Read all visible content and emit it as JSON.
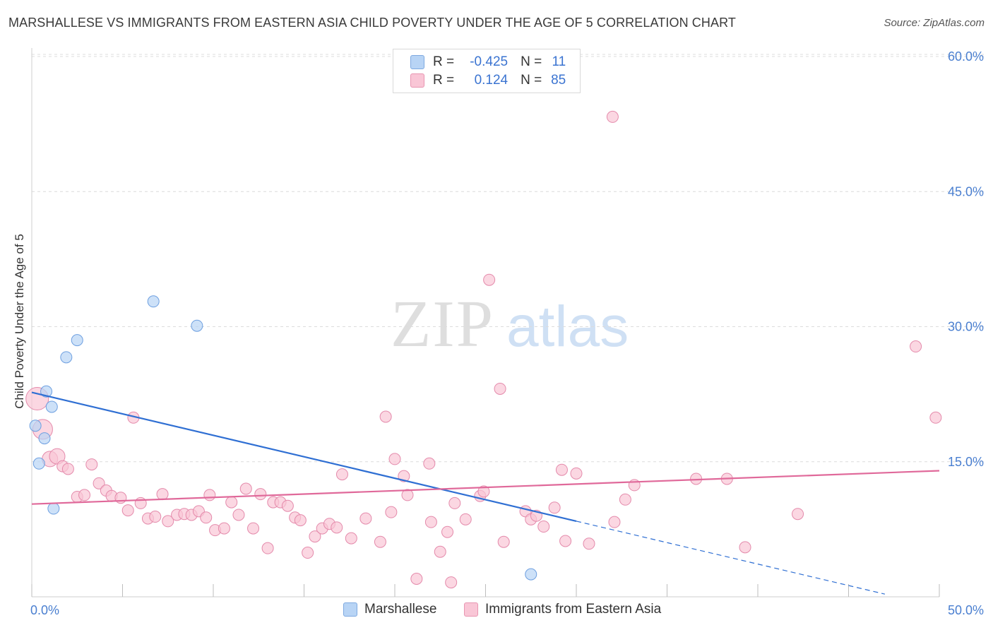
{
  "title": "MARSHALLESE VS IMMIGRANTS FROM EASTERN ASIA CHILD POVERTY UNDER THE AGE OF 5 CORRELATION CHART",
  "source": "Source: ZipAtlas.com",
  "watermark": {
    "zip": "ZIP",
    "atlas": "atlas"
  },
  "legend": {
    "rows": [
      {
        "r_label": "R =",
        "r_value": "-0.425",
        "n_label": "N =",
        "n_value": "11",
        "color": "#b8d4f5",
        "border": "#7ea9e0"
      },
      {
        "r_label": "R =",
        "r_value": "0.124",
        "n_label": "N =",
        "n_value": "85",
        "color": "#f9c6d6",
        "border": "#e895b1"
      }
    ]
  },
  "bottom_legend": [
    {
      "label": "Marshallese",
      "color": "#b8d4f5",
      "border": "#7ea9e0"
    },
    {
      "label": "Immigrants from Eastern Asia",
      "color": "#f9c6d6",
      "border": "#e895b1"
    }
  ],
  "chart_data": {
    "type": "scatter",
    "title": "MARSHALLESE VS IMMIGRANTS FROM EASTERN ASIA CHILD POVERTY UNDER THE AGE OF 5 CORRELATION CHART",
    "xlabel": "",
    "ylabel": "Child Poverty Under the Age of 5",
    "xlim": [
      0,
      50
    ],
    "ylim": [
      0,
      60
    ],
    "x_tick_labels": [
      "0.0%",
      "50.0%"
    ],
    "y_ticks": [
      15,
      30,
      45,
      60
    ],
    "y_tick_labels": [
      "15.0%",
      "30.0%",
      "45.0%",
      "60.0%"
    ],
    "grid": true,
    "legend_position": "top-center",
    "series": [
      {
        "name": "Marshallese",
        "color": "#6d9fe0",
        "fill": "#b8d4f5",
        "points": [
          [
            0.2,
            19.0
          ],
          [
            0.4,
            14.8
          ],
          [
            0.7,
            17.6
          ],
          [
            0.8,
            22.8
          ],
          [
            1.1,
            21.1
          ],
          [
            1.2,
            9.8
          ],
          [
            1.9,
            26.6
          ],
          [
            2.5,
            28.5
          ],
          [
            6.7,
            32.8
          ],
          [
            9.1,
            30.1
          ],
          [
            27.5,
            2.5
          ]
        ],
        "trend": {
          "x_start": 0.0,
          "y_start": 22.7,
          "x_end": 30.0,
          "y_end": 8.4,
          "dash_x_end": 47.0,
          "dash_y_end": 0.3,
          "color": "#2f6fd3"
        }
      },
      {
        "name": "Immigrants from Eastern Asia",
        "color": "#e48aab",
        "fill": "#f9c6d6",
        "points": [
          [
            0.3,
            22.0
          ],
          [
            0.6,
            18.6
          ],
          [
            1.0,
            15.3
          ],
          [
            1.4,
            15.6
          ],
          [
            1.7,
            14.5
          ],
          [
            2.0,
            14.2
          ],
          [
            2.5,
            11.1
          ],
          [
            2.9,
            11.3
          ],
          [
            3.3,
            14.7
          ],
          [
            3.7,
            12.6
          ],
          [
            4.1,
            11.8
          ],
          [
            4.4,
            11.2
          ],
          [
            4.9,
            11.0
          ],
          [
            5.3,
            9.6
          ],
          [
            5.6,
            19.9
          ],
          [
            6.0,
            10.4
          ],
          [
            6.4,
            8.7
          ],
          [
            6.8,
            8.9
          ],
          [
            7.2,
            11.4
          ],
          [
            7.5,
            8.4
          ],
          [
            8.0,
            9.1
          ],
          [
            8.4,
            9.2
          ],
          [
            8.8,
            9.1
          ],
          [
            9.2,
            9.5
          ],
          [
            9.6,
            8.8
          ],
          [
            9.8,
            11.3
          ],
          [
            10.1,
            7.4
          ],
          [
            10.6,
            7.6
          ],
          [
            11.0,
            10.5
          ],
          [
            11.4,
            9.1
          ],
          [
            11.8,
            12.0
          ],
          [
            12.2,
            7.6
          ],
          [
            12.6,
            11.4
          ],
          [
            13.0,
            5.4
          ],
          [
            13.3,
            10.5
          ],
          [
            13.7,
            10.5
          ],
          [
            14.1,
            10.1
          ],
          [
            14.5,
            8.8
          ],
          [
            14.8,
            8.5
          ],
          [
            15.2,
            4.9
          ],
          [
            15.6,
            6.7
          ],
          [
            16.0,
            7.6
          ],
          [
            16.4,
            8.1
          ],
          [
            16.8,
            7.7
          ],
          [
            17.1,
            13.6
          ],
          [
            17.6,
            6.5
          ],
          [
            18.4,
            8.7
          ],
          [
            19.2,
            6.1
          ],
          [
            19.5,
            20.0
          ],
          [
            19.8,
            9.4
          ],
          [
            20.0,
            15.3
          ],
          [
            20.5,
            13.4
          ],
          [
            20.7,
            11.3
          ],
          [
            21.2,
            2.0
          ],
          [
            21.9,
            14.8
          ],
          [
            22.0,
            8.3
          ],
          [
            22.5,
            5.0
          ],
          [
            22.9,
            7.2
          ],
          [
            23.1,
            1.6
          ],
          [
            23.3,
            10.4
          ],
          [
            23.9,
            8.6
          ],
          [
            24.7,
            11.2
          ],
          [
            24.9,
            11.7
          ],
          [
            25.2,
            35.2
          ],
          [
            25.8,
            23.1
          ],
          [
            26.0,
            6.1
          ],
          [
            27.2,
            9.5
          ],
          [
            27.5,
            8.6
          ],
          [
            27.8,
            9.0
          ],
          [
            28.2,
            7.8
          ],
          [
            28.8,
            9.9
          ],
          [
            29.2,
            14.1
          ],
          [
            29.4,
            6.2
          ],
          [
            30.0,
            13.7
          ],
          [
            30.7,
            5.9
          ],
          [
            32.0,
            53.3
          ],
          [
            32.1,
            8.3
          ],
          [
            32.7,
            10.8
          ],
          [
            33.2,
            12.4
          ],
          [
            36.6,
            13.1
          ],
          [
            38.3,
            13.1
          ],
          [
            39.3,
            5.5
          ],
          [
            42.2,
            9.2
          ],
          [
            48.7,
            27.8
          ],
          [
            49.8,
            19.9
          ]
        ],
        "trend": {
          "x_start": 0.0,
          "y_start": 10.3,
          "x_end": 50.0,
          "y_end": 14.0,
          "color": "#e0699a"
        }
      }
    ]
  }
}
